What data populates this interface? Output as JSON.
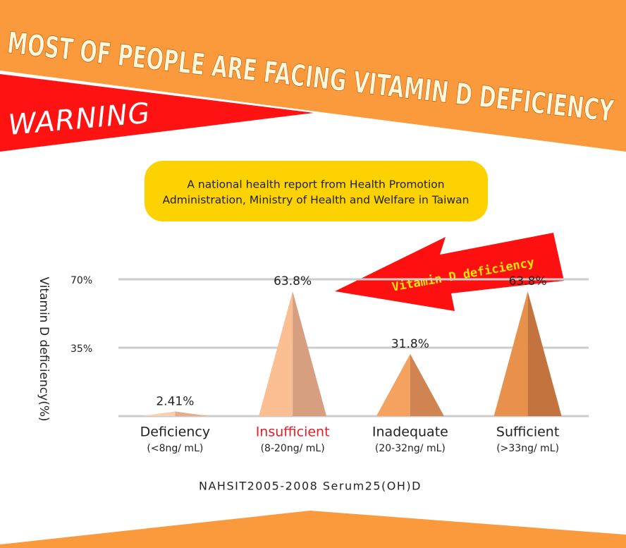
{
  "headline": "MOST OF PEOPLE ARE FACING VITAMIN D DEFICIENCY",
  "badge": "WARNING",
  "source_note": [
    "A national health report from Health Promotion",
    "Administration, Ministry of Health and Welfare in Taiwan"
  ],
  "chart_data": {
    "type": "triangle",
    "annotation": "Vitamin D deficiency",
    "y_label": "Vitamin D deficiency(%)",
    "x_label": "NAHSIT2005-2008 Serum25(OH)D",
    "categories": [
      "Deficiency",
      "Insufficient",
      "Inadequate",
      "Sufficient"
    ],
    "category_notes": [
      "(<8ng/ mL)",
      "(8-20ng/ mL)",
      "(20-32ng/ mL)",
      "(>33ng/ mL)"
    ],
    "category_colors": [
      "#222222",
      "#e31e24",
      "#222222",
      "#222222"
    ],
    "values": [
      2.41,
      63.8,
      31.8,
      63.8
    ],
    "value_labels": [
      "2.41%",
      "63.8%",
      "31.8%",
      "63.8%"
    ],
    "colors": [
      "#f7cfb2",
      "#fbbd92",
      "#f5a160",
      "#e8914c"
    ],
    "shade_colors": [
      "#e3ae90",
      "#d6a080",
      "#cf8452",
      "#c2733e"
    ],
    "ylim": [
      0,
      70
    ],
    "yticks": [
      {
        "value": 35,
        "label": "35%"
      },
      {
        "value": 70,
        "label": "70%"
      }
    ],
    "grid": true
  }
}
